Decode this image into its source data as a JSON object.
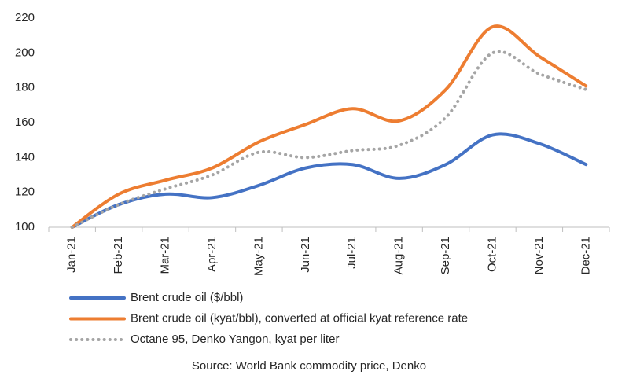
{
  "chart_data": {
    "type": "line",
    "categories": [
      "Jan-21",
      "Feb-21",
      "Mar-21",
      "Apr-21",
      "May-21",
      "Jun-21",
      "Jul-21",
      "Aug-21",
      "Sep-21",
      "Oct-21",
      "Nov-21",
      "Dec-21"
    ],
    "series": [
      {
        "name": "Brent crude oil ($/bbl)",
        "color": "#4472c4",
        "style": "solid",
        "values": [
          100,
          113,
          119,
          117,
          124,
          134,
          136,
          128,
          136,
          153,
          148,
          136
        ]
      },
      {
        "name": "Brent crude oil (kyat/bbl), converted at official kyat reference rate",
        "color": "#ed7d31",
        "style": "solid",
        "values": [
          100,
          119,
          127,
          134,
          149,
          159,
          168,
          161,
          179,
          215,
          198,
          181
        ]
      },
      {
        "name": "Octane 95, Denko Yangon, kyat per liter",
        "color": "#a5a5a5",
        "style": "dotted",
        "values": [
          100,
          113,
          122,
          130,
          143,
          140,
          144,
          147,
          163,
          200,
          188,
          179
        ]
      }
    ],
    "ylim": [
      100,
      220
    ],
    "yticks": [
      100,
      120,
      140,
      160,
      180,
      200,
      220
    ],
    "smooth": true,
    "source": "Source:  World Bank commodity price, Denko"
  }
}
